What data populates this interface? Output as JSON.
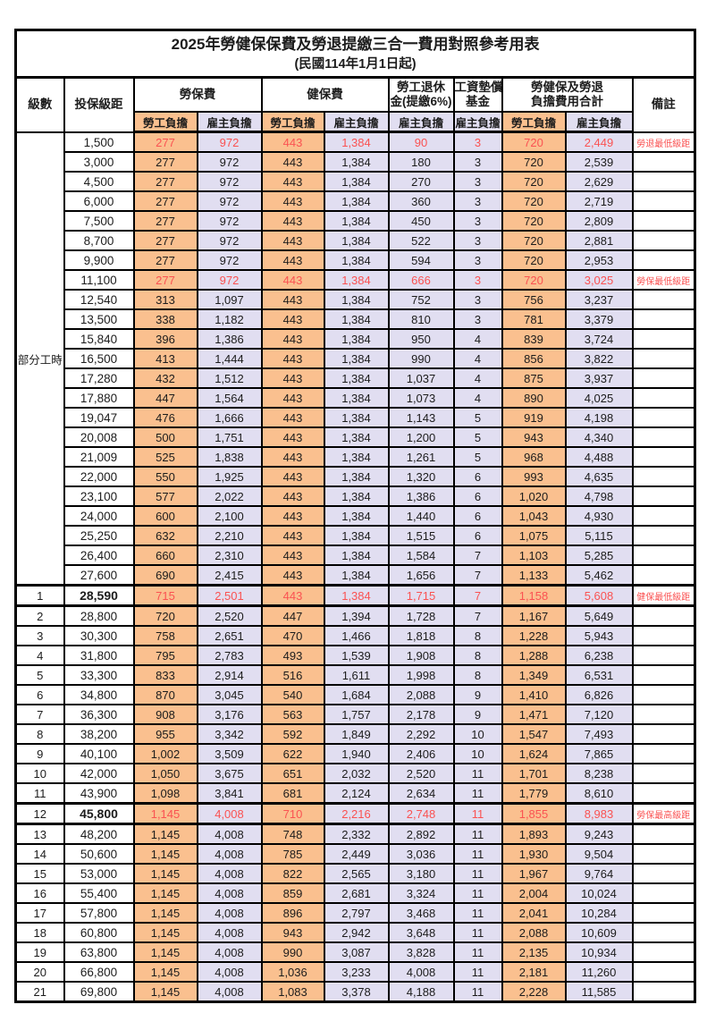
{
  "title": "2025年勞健保保費及勞退提繳三合一費用對照參考用表",
  "subtitle": "(民國114年1月1日起)",
  "columns": {
    "grade": "級數",
    "bracket": "投保級距",
    "labor_insurance": "勞保費",
    "health_insurance": "健保費",
    "pension_line1": "勞工退休",
    "pension_line2": "金(提繳6%)",
    "wage_fund_line1": "工資墊償",
    "wage_fund_line2": "基金",
    "total_line1": "勞健保及勞退",
    "total_line2": "負擔費用合計",
    "note": "備註",
    "employee": "勞工負擔",
    "employer": "雇主負擔"
  },
  "part_time_label": "部分工時",
  "part_time_row_count": 23,
  "colors": {
    "employee_bg": "#fac08f",
    "employer_bg": "#e1def1",
    "highlight_text": "#fa5252",
    "border": "#000000"
  },
  "row_format": [
    "grade",
    "bracket",
    "labor_employee",
    "labor_employer",
    "health_employee",
    "health_employer",
    "pension_employer",
    "wage_fund_employer",
    "total_employee",
    "total_employer",
    "note",
    "is_red",
    "is_bold_bracket"
  ],
  "rows": [
    [
      "",
      "1,500",
      "277",
      "972",
      "443",
      "1,384",
      "90",
      "3",
      "720",
      "2,449",
      "勞退最低級距",
      1,
      0
    ],
    [
      "",
      "3,000",
      "277",
      "972",
      "443",
      "1,384",
      "180",
      "3",
      "720",
      "2,539",
      "",
      0,
      0
    ],
    [
      "",
      "4,500",
      "277",
      "972",
      "443",
      "1,384",
      "270",
      "3",
      "720",
      "2,629",
      "",
      0,
      0
    ],
    [
      "",
      "6,000",
      "277",
      "972",
      "443",
      "1,384",
      "360",
      "3",
      "720",
      "2,719",
      "",
      0,
      0
    ],
    [
      "",
      "7,500",
      "277",
      "972",
      "443",
      "1,384",
      "450",
      "3",
      "720",
      "2,809",
      "",
      0,
      0
    ],
    [
      "",
      "8,700",
      "277",
      "972",
      "443",
      "1,384",
      "522",
      "3",
      "720",
      "2,881",
      "",
      0,
      0
    ],
    [
      "",
      "9,900",
      "277",
      "972",
      "443",
      "1,384",
      "594",
      "3",
      "720",
      "2,953",
      "",
      0,
      0
    ],
    [
      "",
      "11,100",
      "277",
      "972",
      "443",
      "1,384",
      "666",
      "3",
      "720",
      "3,025",
      "勞保最低級距",
      1,
      0
    ],
    [
      "",
      "12,540",
      "313",
      "1,097",
      "443",
      "1,384",
      "752",
      "3",
      "756",
      "3,237",
      "",
      0,
      0
    ],
    [
      "",
      "13,500",
      "338",
      "1,182",
      "443",
      "1,384",
      "810",
      "3",
      "781",
      "3,379",
      "",
      0,
      0
    ],
    [
      "",
      "15,840",
      "396",
      "1,386",
      "443",
      "1,384",
      "950",
      "4",
      "839",
      "3,724",
      "",
      0,
      0
    ],
    [
      "",
      "16,500",
      "413",
      "1,444",
      "443",
      "1,384",
      "990",
      "4",
      "856",
      "3,822",
      "",
      0,
      0
    ],
    [
      "",
      "17,280",
      "432",
      "1,512",
      "443",
      "1,384",
      "1,037",
      "4",
      "875",
      "3,937",
      "",
      0,
      0
    ],
    [
      "",
      "17,880",
      "447",
      "1,564",
      "443",
      "1,384",
      "1,073",
      "4",
      "890",
      "4,025",
      "",
      0,
      0
    ],
    [
      "",
      "19,047",
      "476",
      "1,666",
      "443",
      "1,384",
      "1,143",
      "5",
      "919",
      "4,198",
      "",
      0,
      0
    ],
    [
      "",
      "20,008",
      "500",
      "1,751",
      "443",
      "1,384",
      "1,200",
      "5",
      "943",
      "4,340",
      "",
      0,
      0
    ],
    [
      "",
      "21,009",
      "525",
      "1,838",
      "443",
      "1,384",
      "1,261",
      "5",
      "968",
      "4,488",
      "",
      0,
      0
    ],
    [
      "",
      "22,000",
      "550",
      "1,925",
      "443",
      "1,384",
      "1,320",
      "6",
      "993",
      "4,635",
      "",
      0,
      0
    ],
    [
      "",
      "23,100",
      "577",
      "2,022",
      "443",
      "1,384",
      "1,386",
      "6",
      "1,020",
      "4,798",
      "",
      0,
      0
    ],
    [
      "",
      "24,000",
      "600",
      "2,100",
      "443",
      "1,384",
      "1,440",
      "6",
      "1,043",
      "4,930",
      "",
      0,
      0
    ],
    [
      "",
      "25,250",
      "632",
      "2,210",
      "443",
      "1,384",
      "1,515",
      "6",
      "1,075",
      "5,115",
      "",
      0,
      0
    ],
    [
      "",
      "26,400",
      "660",
      "2,310",
      "443",
      "1,384",
      "1,584",
      "7",
      "1,103",
      "5,285",
      "",
      0,
      0
    ],
    [
      "",
      "27,600",
      "690",
      "2,415",
      "443",
      "1,384",
      "1,656",
      "7",
      "1,133",
      "5,462",
      "",
      0,
      0
    ],
    [
      "1",
      "28,590",
      "715",
      "2,501",
      "443",
      "1,384",
      "1,715",
      "7",
      "1,158",
      "5,608",
      "健保最低級距",
      1,
      1
    ],
    [
      "2",
      "28,800",
      "720",
      "2,520",
      "447",
      "1,394",
      "1,728",
      "7",
      "1,167",
      "5,649",
      "",
      0,
      0
    ],
    [
      "3",
      "30,300",
      "758",
      "2,651",
      "470",
      "1,466",
      "1,818",
      "8",
      "1,228",
      "5,943",
      "",
      0,
      0
    ],
    [
      "4",
      "31,800",
      "795",
      "2,783",
      "493",
      "1,539",
      "1,908",
      "8",
      "1,288",
      "6,238",
      "",
      0,
      0
    ],
    [
      "5",
      "33,300",
      "833",
      "2,914",
      "516",
      "1,611",
      "1,998",
      "8",
      "1,349",
      "6,531",
      "",
      0,
      0
    ],
    [
      "6",
      "34,800",
      "870",
      "3,045",
      "540",
      "1,684",
      "2,088",
      "9",
      "1,410",
      "6,826",
      "",
      0,
      0
    ],
    [
      "7",
      "36,300",
      "908",
      "3,176",
      "563",
      "1,757",
      "2,178",
      "9",
      "1,471",
      "7,120",
      "",
      0,
      0
    ],
    [
      "8",
      "38,200",
      "955",
      "3,342",
      "592",
      "1,849",
      "2,292",
      "10",
      "1,547",
      "7,493",
      "",
      0,
      0
    ],
    [
      "9",
      "40,100",
      "1,002",
      "3,509",
      "622",
      "1,940",
      "2,406",
      "10",
      "1,624",
      "7,865",
      "",
      0,
      0
    ],
    [
      "10",
      "42,000",
      "1,050",
      "3,675",
      "651",
      "2,032",
      "2,520",
      "11",
      "1,701",
      "8,238",
      "",
      0,
      0
    ],
    [
      "11",
      "43,900",
      "1,098",
      "3,841",
      "681",
      "2,124",
      "2,634",
      "11",
      "1,779",
      "8,610",
      "",
      0,
      0
    ],
    [
      "12",
      "45,800",
      "1,145",
      "4,008",
      "710",
      "2,216",
      "2,748",
      "11",
      "1,855",
      "8,983",
      "勞保最高級距",
      1,
      1
    ],
    [
      "13",
      "48,200",
      "1,145",
      "4,008",
      "748",
      "2,332",
      "2,892",
      "11",
      "1,893",
      "9,243",
      "",
      0,
      0
    ],
    [
      "14",
      "50,600",
      "1,145",
      "4,008",
      "785",
      "2,449",
      "3,036",
      "11",
      "1,930",
      "9,504",
      "",
      0,
      0
    ],
    [
      "15",
      "53,000",
      "1,145",
      "4,008",
      "822",
      "2,565",
      "3,180",
      "11",
      "1,967",
      "9,764",
      "",
      0,
      0
    ],
    [
      "16",
      "55,400",
      "1,145",
      "4,008",
      "859",
      "2,681",
      "3,324",
      "11",
      "2,004",
      "10,024",
      "",
      0,
      0
    ],
    [
      "17",
      "57,800",
      "1,145",
      "4,008",
      "896",
      "2,797",
      "3,468",
      "11",
      "2,041",
      "10,284",
      "",
      0,
      0
    ],
    [
      "18",
      "60,800",
      "1,145",
      "4,008",
      "943",
      "2,942",
      "3,648",
      "11",
      "2,088",
      "10,609",
      "",
      0,
      0
    ],
    [
      "19",
      "63,800",
      "1,145",
      "4,008",
      "990",
      "3,087",
      "3,828",
      "11",
      "2,135",
      "10,934",
      "",
      0,
      0
    ],
    [
      "20",
      "66,800",
      "1,145",
      "4,008",
      "1,036",
      "3,233",
      "4,008",
      "11",
      "2,181",
      "11,260",
      "",
      0,
      0
    ],
    [
      "21",
      "69,800",
      "1,145",
      "4,008",
      "1,083",
      "3,378",
      "4,188",
      "11",
      "2,228",
      "11,585",
      "",
      0,
      0
    ]
  ]
}
